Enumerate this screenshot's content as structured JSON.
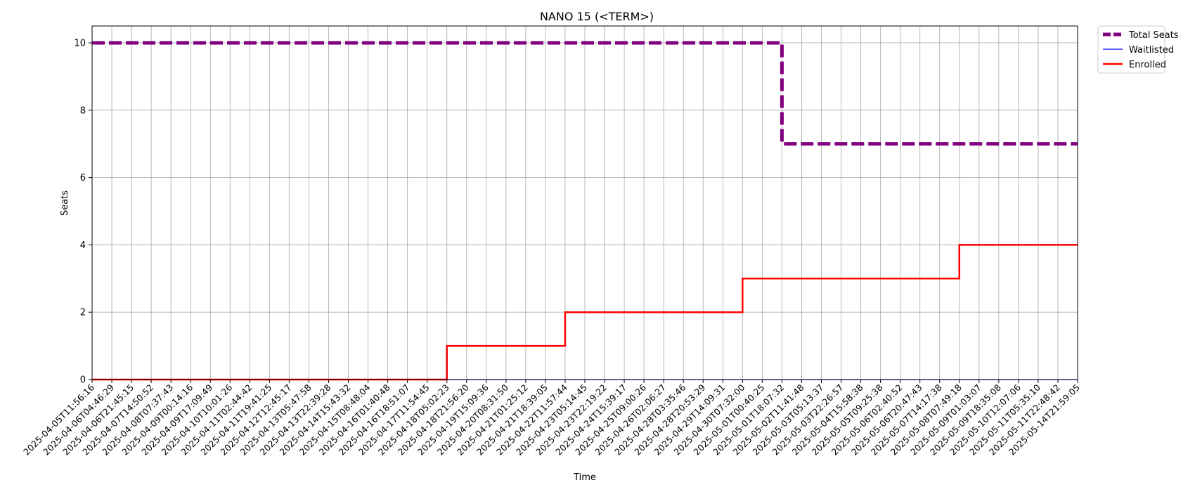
{
  "chart_data": {
    "type": "line",
    "title": "NANO 15 (<TERM>)",
    "xlabel": "Time",
    "ylabel": "Seats",
    "ylim": [
      0,
      10.5
    ],
    "yticks": [
      0,
      2,
      4,
      6,
      8,
      10
    ],
    "grid": true,
    "legend_placement": "outside-top-right",
    "x": [
      "2025-04-05T11:56:16",
      "2025-04-06T04:46:29",
      "2025-04-06T21:45:15",
      "2025-04-07T14:50:52",
      "2025-04-08T07:37:43",
      "2025-04-09T00:14:16",
      "2025-04-09T17:09:49",
      "2025-04-10T10:01:26",
      "2025-04-11T02:44:42",
      "2025-04-11T19:41:25",
      "2025-04-12T12:45:17",
      "2025-04-13T05:47:58",
      "2025-04-13T22:39:28",
      "2025-04-14T15:43:32",
      "2025-04-15T08:48:04",
      "2025-04-16T01:40:48",
      "2025-04-16T18:51:07",
      "2025-04-17T11:54:45",
      "2025-04-18T05:02:23",
      "2025-04-18T21:56:20",
      "2025-04-19T15:09:36",
      "2025-04-20T08:31:50",
      "2025-04-21T01:25:12",
      "2025-04-21T18:39:05",
      "2025-04-22T11:57:44",
      "2025-04-23T05:14:45",
      "2025-04-23T22:19:22",
      "2025-04-24T15:39:17",
      "2025-04-25T09:00:26",
      "2025-04-26T02:06:27",
      "2025-04-28T03:35:46",
      "2025-04-28T20:53:29",
      "2025-04-29T14:09:31",
      "2025-04-30T07:32:00",
      "2025-05-01T00:40:25",
      "2025-05-01T18:07:32",
      "2025-05-02T11:41:48",
      "2025-05-03T05:13:37",
      "2025-05-03T22:26:57",
      "2025-05-04T15:58:38",
      "2025-05-05T09:25:38",
      "2025-05-06T02:40:52",
      "2025-05-06T20:47:43",
      "2025-05-07T14:17:38",
      "2025-05-08T07:49:18",
      "2025-05-09T01:03:07",
      "2025-05-09T18:35:08",
      "2025-05-10T12:07:06",
      "2025-05-11T05:35:10",
      "2025-05-11T22:48:42",
      "2025-05-14T21:59:05"
    ],
    "series": [
      {
        "name": "Total Seats",
        "color": "#800080",
        "style": "dashed",
        "values": [
          10,
          10,
          10,
          10,
          10,
          10,
          10,
          10,
          10,
          10,
          10,
          10,
          10,
          10,
          10,
          10,
          10,
          10,
          10,
          10,
          10,
          10,
          10,
          10,
          10,
          10,
          10,
          10,
          10,
          10,
          10,
          10,
          10,
          10,
          10,
          7,
          7,
          7,
          7,
          7,
          7,
          7,
          7,
          7,
          7,
          7,
          7,
          7,
          7,
          7,
          7
        ]
      },
      {
        "name": "Waitlisted",
        "color": "#0000ff",
        "style": "solid",
        "values": [
          0,
          0,
          0,
          0,
          0,
          0,
          0,
          0,
          0,
          0,
          0,
          0,
          0,
          0,
          0,
          0,
          0,
          0,
          0,
          0,
          0,
          0,
          0,
          0,
          0,
          0,
          0,
          0,
          0,
          0,
          0,
          0,
          0,
          0,
          0,
          0,
          0,
          0,
          0,
          0,
          0,
          0,
          0,
          0,
          0,
          0,
          0,
          0,
          0,
          0,
          0
        ]
      },
      {
        "name": "Enrolled",
        "color": "#ff0000",
        "style": "solid",
        "values": [
          0,
          0,
          0,
          0,
          0,
          0,
          0,
          0,
          0,
          0,
          0,
          0,
          0,
          0,
          0,
          0,
          0,
          0,
          1,
          1,
          1,
          1,
          1,
          1,
          2,
          2,
          2,
          2,
          2,
          2,
          2,
          2,
          2,
          3,
          3,
          3,
          3,
          3,
          3,
          3,
          3,
          3,
          3,
          3,
          4,
          4,
          4,
          4,
          4,
          4,
          4
        ]
      }
    ]
  }
}
